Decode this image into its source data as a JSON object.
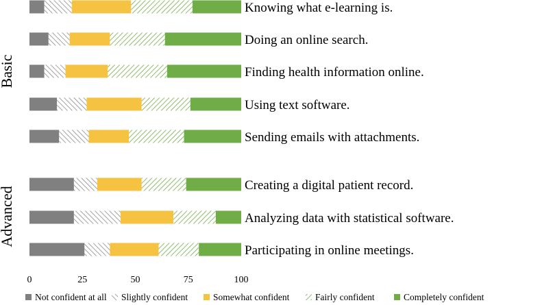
{
  "chart_data": {
    "type": "bar",
    "orientation": "horizontal",
    "stacked": true,
    "title": "",
    "xlabel": "",
    "ylabel": "",
    "xlim": [
      0,
      100
    ],
    "x_ticks": [
      0,
      25,
      50,
      75,
      100
    ],
    "groups": [
      {
        "name": "Basic",
        "categories": [
          "Knowing what e-learning is.",
          "Doing an online search.",
          "Finding health information online.",
          "Using text software.",
          "Sending emails with attachments."
        ]
      },
      {
        "name": "Advanced",
        "categories": [
          "Creating a digital patient record.",
          "Analyzing data with statistical software.",
          "Participating in online meetings."
        ]
      }
    ],
    "categories": [
      "Knowing what e-learning is.",
      "Doing an online search.",
      "Finding health information online.",
      "Using text software.",
      "Sending emails with attachments.",
      "Creating a digital patient record.",
      "Analyzing data with statistical software.",
      "Participating in online meetings."
    ],
    "series": [
      {
        "name": "Not confident at all",
        "color": "#808080",
        "pattern": "solid",
        "values": [
          7,
          9,
          7,
          13,
          14,
          21,
          21,
          26
        ]
      },
      {
        "name": "Slightly confident",
        "color": "#808080",
        "pattern": "hatch-down",
        "values": [
          13,
          10,
          10,
          14,
          14,
          11,
          22,
          12
        ]
      },
      {
        "name": "Somewhat confident",
        "color": "#F5C242",
        "pattern": "solid",
        "values": [
          28,
          19,
          20,
          26,
          19,
          21,
          25,
          23
        ]
      },
      {
        "name": "Fairly confident",
        "color": "#70AD47",
        "pattern": "hatch-up",
        "values": [
          29,
          26,
          28,
          23,
          26,
          21,
          20,
          19
        ]
      },
      {
        "name": "Completely confident",
        "color": "#70AD47",
        "pattern": "solid",
        "values": [
          23,
          36,
          35,
          24,
          27,
          26,
          12,
          20
        ]
      }
    ],
    "legend_position": "bottom",
    "grid": false
  }
}
